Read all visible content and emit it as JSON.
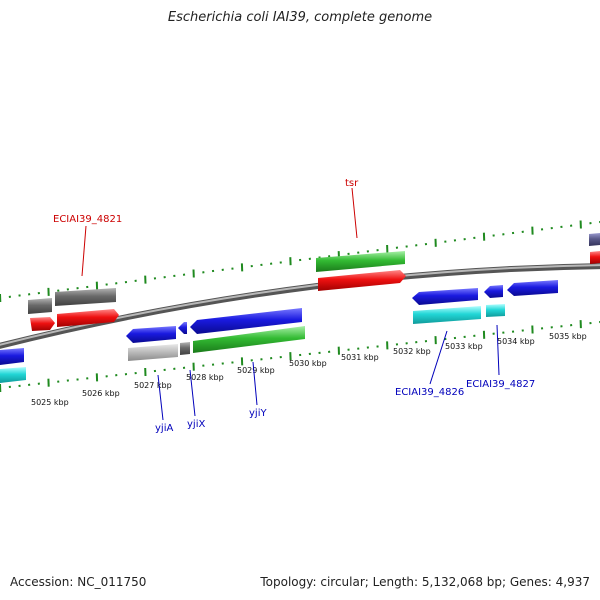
{
  "title": "Escherichia coli IAI39, complete genome",
  "footer": {
    "accession": "Accession: NC_011750",
    "summary": "Topology: circular; Length: 5,132,068 bp; Genes: 4,937"
  },
  "colors": {
    "backbone": "#8f8f8f",
    "ticks": "#1f8a1f",
    "blue": "#1a1ae0",
    "red": "#ee1111",
    "green": "#33bb33",
    "cyan": "#22d6d6",
    "gray": "#6a6a6a",
    "lightgray": "#bdbdbd",
    "slate": "#5a5a8a",
    "label_red": "#cc0000",
    "label_blue": "#0000bb"
  },
  "scale_labels": [
    "5025 kbp",
    "5026 kbp",
    "5027 kbp",
    "5028 kbp",
    "5029 kbp",
    "5030 kbp",
    "5031 kbp",
    "5032 kbp",
    "5033 kbp",
    "5034 kbp",
    "5035 kbp"
  ],
  "gene_labels": [
    {
      "text": "ECIAI39_4821",
      "color": "#cc0000"
    },
    {
      "text": "tsr",
      "color": "#cc0000"
    },
    {
      "text": "yjiA",
      "color": "#0000bb"
    },
    {
      "text": "yjiX",
      "color": "#0000bb"
    },
    {
      "text": "yjiY",
      "color": "#0000bb"
    },
    {
      "text": "ECIAI39_4826",
      "color": "#0000bb"
    },
    {
      "text": "ECIAI39_4827",
      "color": "#0000bb"
    }
  ]
}
